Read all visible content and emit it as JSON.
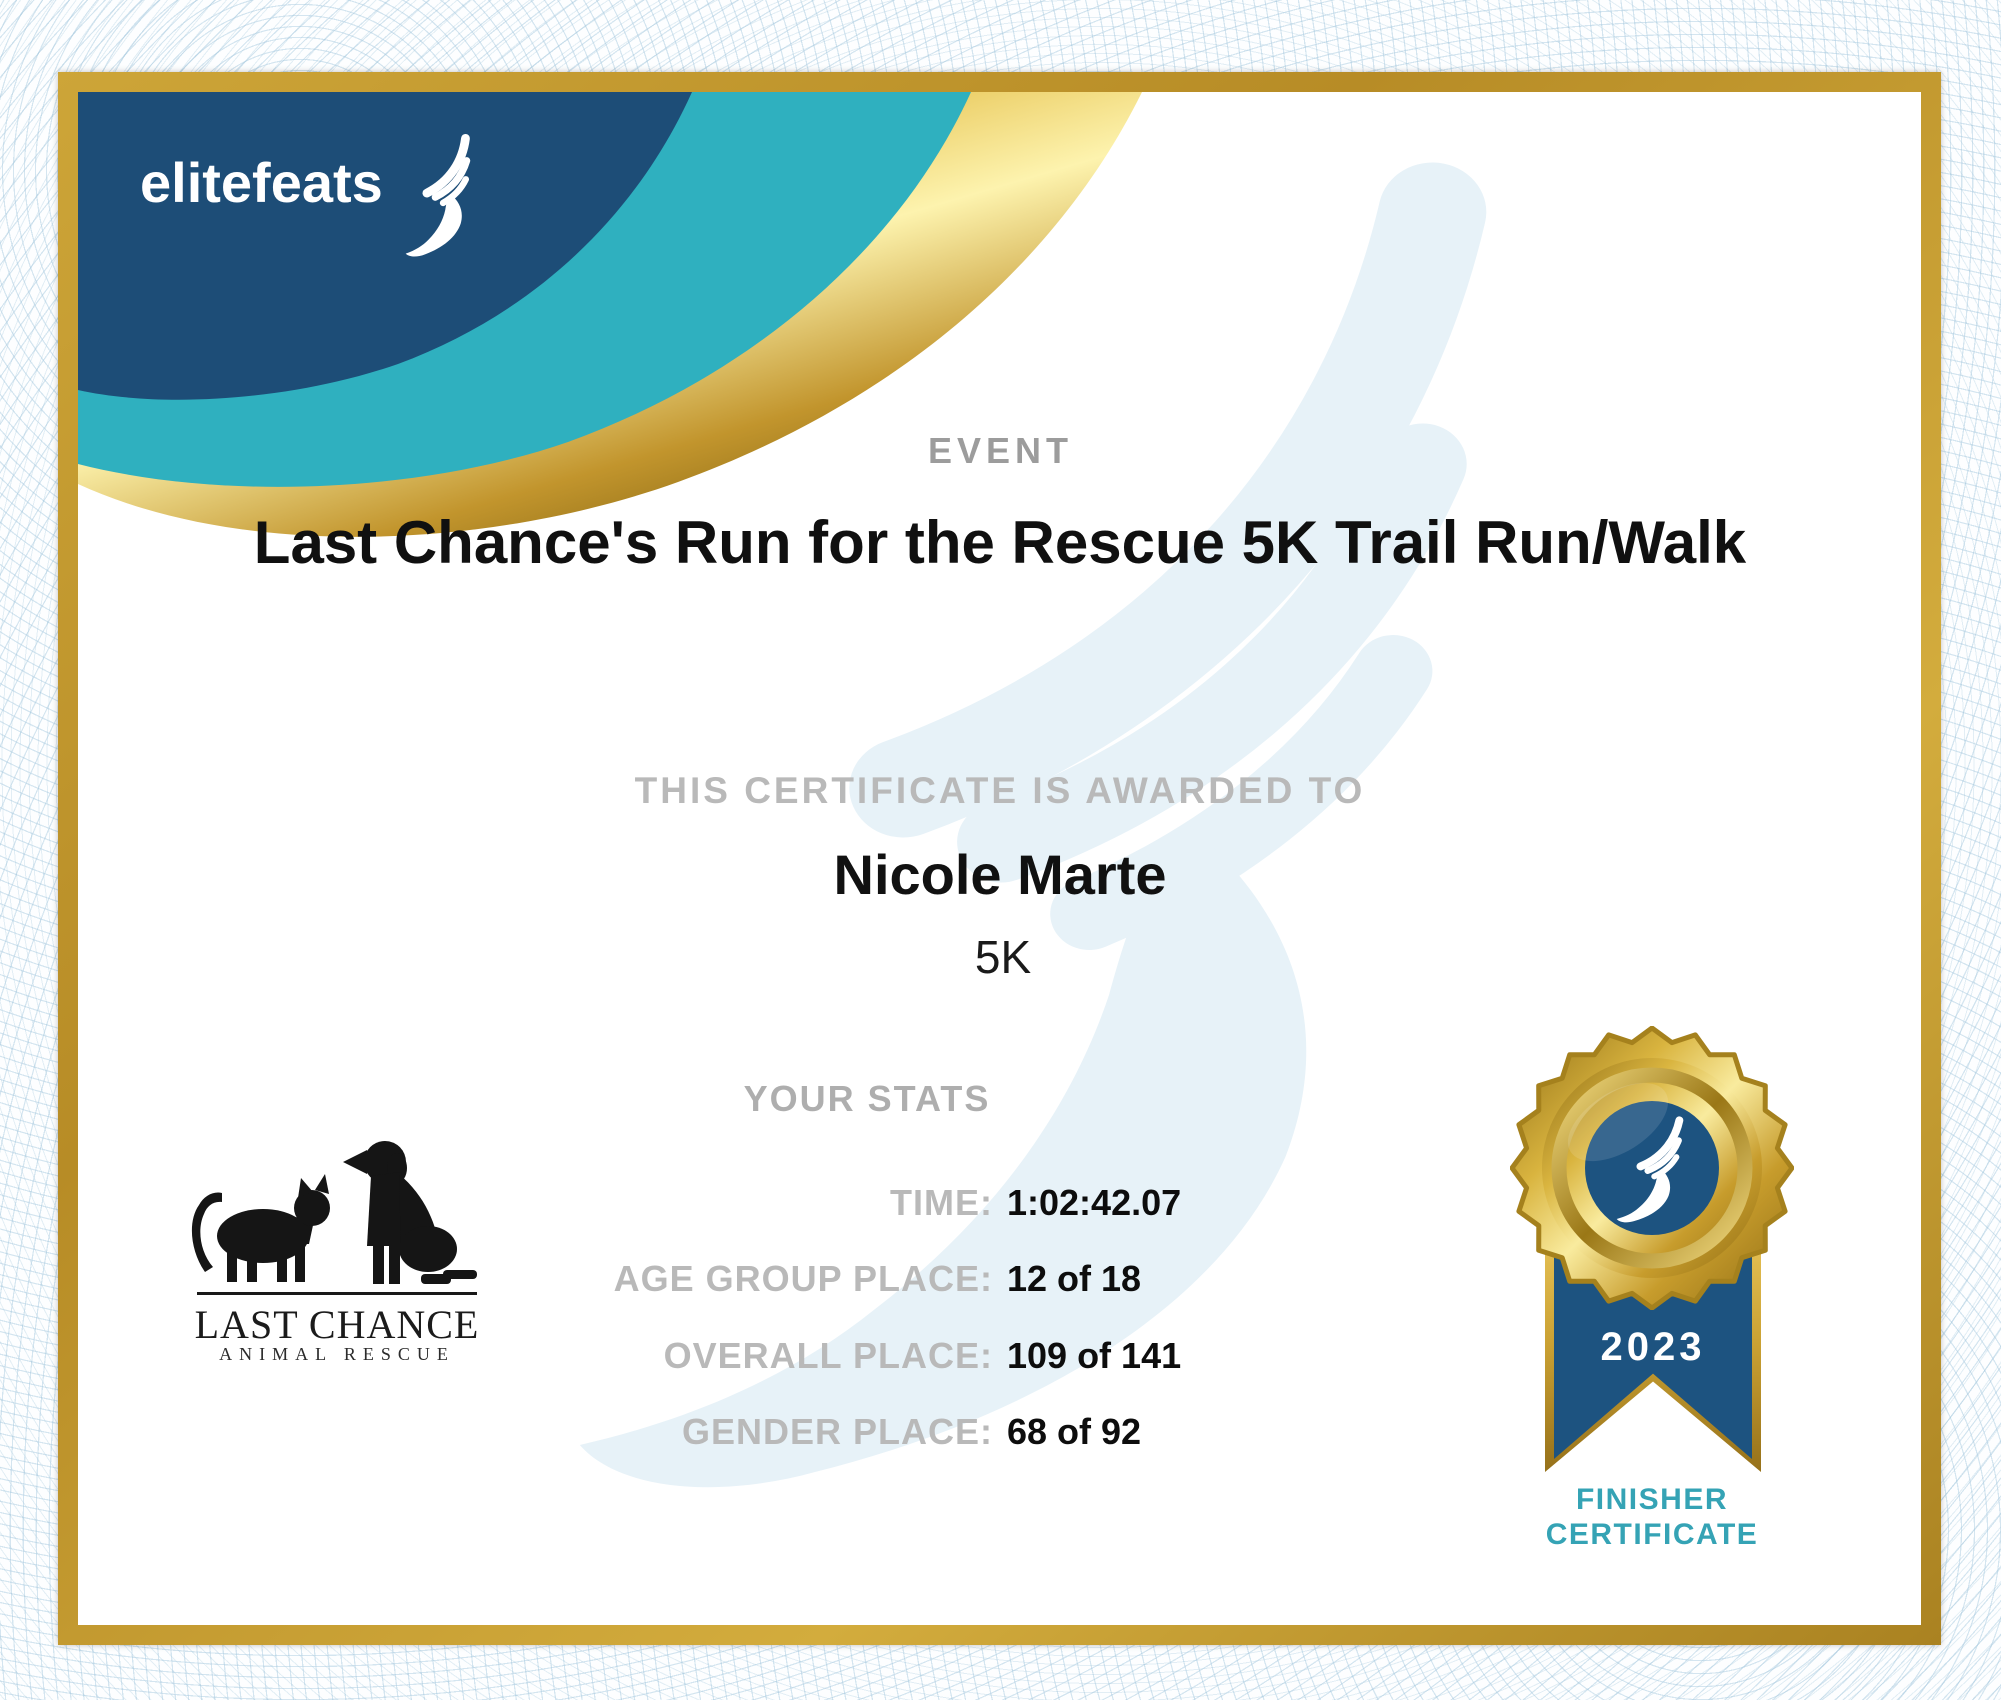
{
  "brand": {
    "name": "elitefeats",
    "icon": "winged-foot-icon"
  },
  "header": {
    "event_label": "EVENT",
    "event_title": "Last Chance's Run for the Rescue 5K Trail Run/Walk"
  },
  "award": {
    "intro": "THIS CERTIFICATE IS AWARDED TO",
    "recipient": "Nicole Marte",
    "division": "5K"
  },
  "stats": {
    "heading": "YOUR STATS",
    "rows": [
      {
        "label": "TIME:",
        "value": "1:02:42.07"
      },
      {
        "label": "AGE GROUP PLACE:",
        "value": "12 of 18"
      },
      {
        "label": "OVERALL PLACE:",
        "value": "109 of 141"
      },
      {
        "label": "GENDER PLACE:",
        "value": "68 of 92"
      }
    ]
  },
  "sponsor": {
    "line1": "LAST CHANCE",
    "line2": "ANIMAL RESCUE"
  },
  "badge": {
    "year": "2023",
    "caption1": "FINISHER",
    "caption2": "CERTIFICATE"
  },
  "colors": {
    "navy": "#1d4d77",
    "teal": "#2fb0bf",
    "frame_gold": "#c49a2c",
    "badge_blue": "#1d5380",
    "caption_teal": "#35a3b5",
    "watermark_blue": "#e7f2f8",
    "label_gray": "#b9b9b9"
  }
}
